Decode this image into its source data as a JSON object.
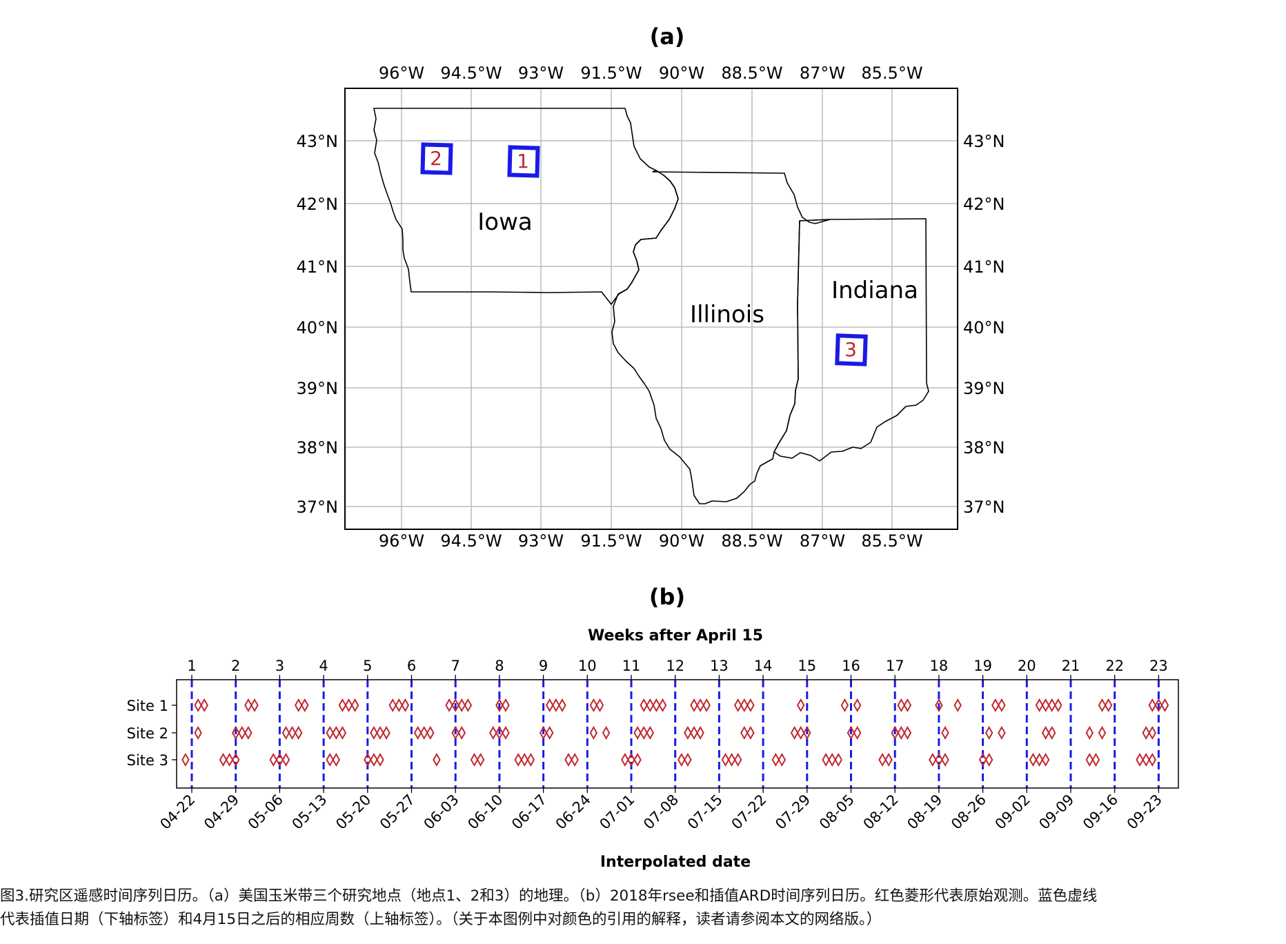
{
  "panel_a": {
    "label": "(a)",
    "lon_ticks": [
      "96°W",
      "94.5°W",
      "93°W",
      "91.5°W",
      "90°W",
      "88.5°W",
      "87°W",
      "85.5°W"
    ],
    "lat_ticks": [
      "43°N",
      "42°N",
      "41°N",
      "40°N",
      "39°N",
      "38°N",
      "37°N"
    ],
    "states": [
      "Iowa",
      "Illinois",
      "Indiana"
    ],
    "sites": [
      "1",
      "2",
      "3"
    ],
    "colors": {
      "site_box": "#1a1ae6",
      "site_label": "#c0272d",
      "grid": "#bbbbbb",
      "border": "#000000"
    }
  },
  "panel_b": {
    "label": "(b)",
    "top_axis_title": "Weeks after April 15",
    "bottom_axis_title": "Interpolated date",
    "week_numbers": [
      "1",
      "2",
      "3",
      "4",
      "5",
      "6",
      "7",
      "8",
      "9",
      "10",
      "11",
      "12",
      "13",
      "14",
      "15",
      "16",
      "17",
      "18",
      "19",
      "20",
      "21",
      "22",
      "23"
    ],
    "dates": [
      "04-22",
      "04-29",
      "05-06",
      "05-13",
      "05-20",
      "05-27",
      "06-03",
      "06-10",
      "06-17",
      "06-24",
      "07-01",
      "07-08",
      "07-15",
      "07-22",
      "07-29",
      "08-05",
      "08-12",
      "08-19",
      "08-26",
      "09-02",
      "09-09",
      "09-16",
      "09-23"
    ],
    "site_labels": [
      "Site 1",
      "Site 2",
      "Site 3"
    ],
    "colors": {
      "interp_line": "#1a1ae6",
      "observation": "#c0272d"
    }
  },
  "chart_data": {
    "type": "scatter",
    "x_axis": "day after April 15",
    "y_categories": [
      "Site 1",
      "Site 2",
      "Site 3"
    ],
    "interpolated_days": [
      7,
      14,
      21,
      28,
      35,
      42,
      49,
      56,
      63,
      70,
      77,
      84,
      91,
      98,
      105,
      112,
      119,
      126,
      133,
      140,
      147,
      154,
      161
    ],
    "series": [
      {
        "name": "Site 1",
        "observation_days": [
          8,
          9,
          16,
          17,
          24,
          25,
          31,
          32,
          33,
          39,
          40,
          41,
          48,
          49,
          50,
          51,
          56,
          57,
          64,
          65,
          66,
          71,
          72,
          79,
          80,
          81,
          82,
          87,
          88,
          89,
          94,
          95,
          96,
          104,
          111,
          113,
          120,
          121,
          126,
          129,
          135,
          136,
          142,
          143,
          144,
          145,
          152,
          153,
          160,
          161,
          162
        ]
      },
      {
        "name": "Site 2",
        "observation_days": [
          8,
          14,
          15,
          16,
          22,
          23,
          24,
          29,
          30,
          31,
          36,
          37,
          38,
          43,
          44,
          45,
          49,
          50,
          55,
          56,
          57,
          63,
          64,
          71,
          73,
          78,
          79,
          80,
          86,
          87,
          88,
          95,
          96,
          103,
          104,
          105,
          112,
          113,
          119,
          120,
          121,
          127,
          134,
          136,
          143,
          144,
          150,
          152,
          159,
          160
        ]
      },
      {
        "name": "Site 3",
        "observation_days": [
          6,
          12,
          13,
          14,
          20,
          21,
          22,
          29,
          30,
          35,
          36,
          37,
          46,
          52,
          53,
          59,
          60,
          61,
          67,
          68,
          76,
          77,
          78,
          85,
          86,
          92,
          93,
          94,
          100,
          101,
          108,
          109,
          110,
          117,
          118,
          125,
          126,
          127,
          133,
          134,
          141,
          142,
          143,
          150,
          151,
          158,
          159,
          160
        ]
      }
    ]
  },
  "caption": {
    "line1": "图3.研究区遥感时间序列日历。（a）美国玉米带三个研究地点（地点1、2和3）的地理。（b）2018年rsee和插值ARD时间序列日历。红色菱形代表原始观测。蓝色虚线",
    "line2": "代表插值日期（下轴标签）和4月15日之后的相应周数（上轴标签）。（关于本图例中对颜色的引用的解释，读者请参阅本文的网络版。）"
  }
}
